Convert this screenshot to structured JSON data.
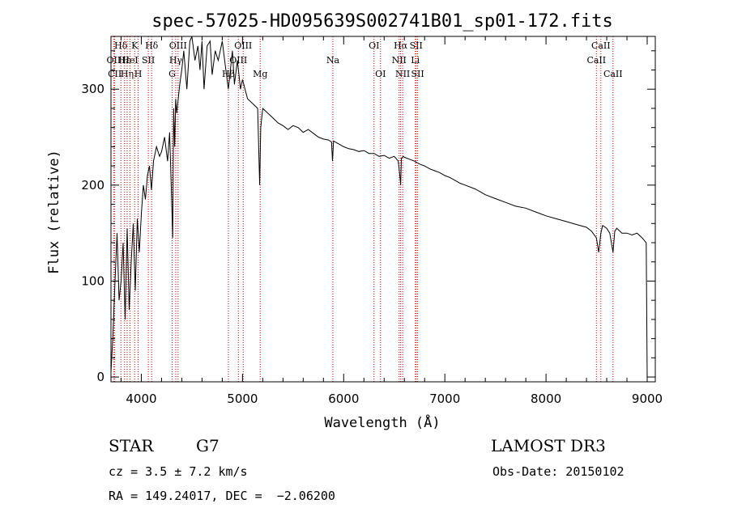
{
  "chart_data": {
    "type": "line",
    "title": "spec-57025-HD095639S002741B01_sp01-172.fits",
    "xlabel": "Wavelength (Å)",
    "ylabel": "Flux (relative)",
    "xlim": [
      3700,
      9080
    ],
    "ylim": [
      -5,
      355
    ],
    "xticks": [
      4000,
      5000,
      6000,
      7000,
      8000,
      9000
    ],
    "yticks": [
      0,
      100,
      200,
      300
    ],
    "grid": false,
    "line_color": "#000000",
    "marker_color": "#cc0000",
    "series": [
      {
        "x": [
          3700,
          3720,
          3740,
          3760,
          3780,
          3800,
          3820,
          3840,
          3860,
          3880,
          3900,
          3920,
          3940,
          3960,
          3980,
          4000,
          4020,
          4040,
          4060,
          4080,
          4100,
          4120,
          4150,
          4180,
          4200,
          4230,
          4260,
          4280,
          4300,
          4310,
          4320,
          4330,
          4340,
          4350,
          4380,
          4400,
          4420,
          4450,
          4480,
          4500,
          4530,
          4560,
          4580,
          4600,
          4620,
          4650,
          4680,
          4700,
          4730,
          4760,
          4800,
          4830,
          4860,
          4880,
          4900,
          4920,
          4950,
          4980,
          5000,
          5050,
          5100,
          5150,
          5170,
          5180,
          5190,
          5200,
          5250,
          5300,
          5350,
          5400,
          5450,
          5500,
          5550,
          5600,
          5650,
          5700,
          5750,
          5800,
          5850,
          5880,
          5890,
          5900,
          5950,
          6000,
          6050,
          6100,
          6150,
          6200,
          6250,
          6300,
          6350,
          6400,
          6450,
          6500,
          6540,
          6560,
          6563,
          6570,
          6590,
          6600,
          6650,
          6700,
          6750,
          6800,
          6850,
          6900,
          6950,
          7000,
          7050,
          7100,
          7150,
          7200,
          7300,
          7400,
          7500,
          7600,
          7700,
          7800,
          7900,
          8000,
          8100,
          8200,
          8300,
          8400,
          8450,
          8498,
          8520,
          8542,
          8560,
          8600,
          8630,
          8662,
          8680,
          8700,
          8750,
          8800,
          8850,
          8900,
          8950,
          8990,
          9000
        ],
        "y": [
          5,
          45,
          100,
          150,
          80,
          100,
          140,
          60,
          155,
          70,
          120,
          160,
          90,
          165,
          130,
          170,
          200,
          185,
          210,
          220,
          195,
          225,
          240,
          230,
          235,
          250,
          225,
          255,
          185,
          145,
          280,
          240,
          290,
          275,
          305,
          320,
          340,
          300,
          350,
          355,
          330,
          345,
          320,
          350,
          300,
          345,
          350,
          315,
          340,
          330,
          350,
          325,
          300,
          320,
          340,
          305,
          330,
          300,
          310,
          290,
          285,
          280,
          200,
          260,
          270,
          280,
          275,
          270,
          265,
          262,
          258,
          262,
          260,
          255,
          258,
          254,
          250,
          248,
          247,
          245,
          225,
          246,
          243,
          240,
          238,
          237,
          235,
          236,
          233,
          233,
          230,
          231,
          228,
          230,
          225,
          205,
          200,
          228,
          230,
          229,
          227,
          225,
          222,
          220,
          217,
          215,
          213,
          210,
          208,
          205,
          202,
          200,
          196,
          190,
          186,
          182,
          178,
          176,
          172,
          168,
          165,
          162,
          159,
          156,
          152,
          145,
          130,
          150,
          158,
          155,
          150,
          130,
          152,
          155,
          150,
          150,
          148,
          150,
          145,
          140,
          0
        ]
      }
    ],
    "line_markers": [
      {
        "label": "Hδ",
        "x": 3798,
        "row": 0
      },
      {
        "label": "OII",
        "x": 3727,
        "row": 1
      },
      {
        "label": "CII",
        "x": 3737,
        "row": 2
      },
      {
        "label": "Hε",
        "x": 3834,
        "row": 1
      },
      {
        "label": "Hη",
        "x": 3860,
        "row": 2
      },
      {
        "label": "K",
        "x": 3934,
        "row": 0
      },
      {
        "label": "H",
        "x": 3969,
        "row": 2
      },
      {
        "label": "HeI",
        "x": 3888,
        "row": 1
      },
      {
        "label": "SII",
        "x": 4069,
        "row": 1
      },
      {
        "label": "Hδ",
        "x": 4102,
        "row": 0
      },
      {
        "label": "OIII",
        "x": 4363,
        "row": 0
      },
      {
        "label": "Hγ",
        "x": 4340,
        "row": 1
      },
      {
        "label": "G",
        "x": 4305,
        "row": 2
      },
      {
        "label": "OIII",
        "x": 5007,
        "row": 0
      },
      {
        "label": "OIII",
        "x": 4959,
        "row": 1
      },
      {
        "label": "Hβ",
        "x": 4861,
        "row": 2
      },
      {
        "label": "Mg",
        "x": 5175,
        "row": 2
      },
      {
        "label": "Na",
        "x": 5893,
        "row": 1
      },
      {
        "label": "OI",
        "x": 6300,
        "row": 0
      },
      {
        "label": "OI",
        "x": 6364,
        "row": 2
      },
      {
        "label": "Hα",
        "x": 6563,
        "row": 0
      },
      {
        "label": "NII",
        "x": 6548,
        "row": 1
      },
      {
        "label": "NII",
        "x": 6583,
        "row": 2
      },
      {
        "label": "SII",
        "x": 6716,
        "row": 0
      },
      {
        "label": "Li",
        "x": 6708,
        "row": 1
      },
      {
        "label": "SII",
        "x": 6731,
        "row": 2
      },
      {
        "label": "CaII",
        "x": 8542,
        "row": 0
      },
      {
        "label": "CaII",
        "x": 8498,
        "row": 1
      },
      {
        "label": "CaII",
        "x": 8662,
        "row": 2
      }
    ]
  },
  "info": {
    "object_class": "STAR",
    "subclass": "G7",
    "redshift": "cz = 3.5 ± 7.2 km/s",
    "coords": "RA = 149.24017, DEC =  −2.06200",
    "survey": "LAMOST DR3",
    "obs_date": "Obs-Date: 20150102"
  }
}
